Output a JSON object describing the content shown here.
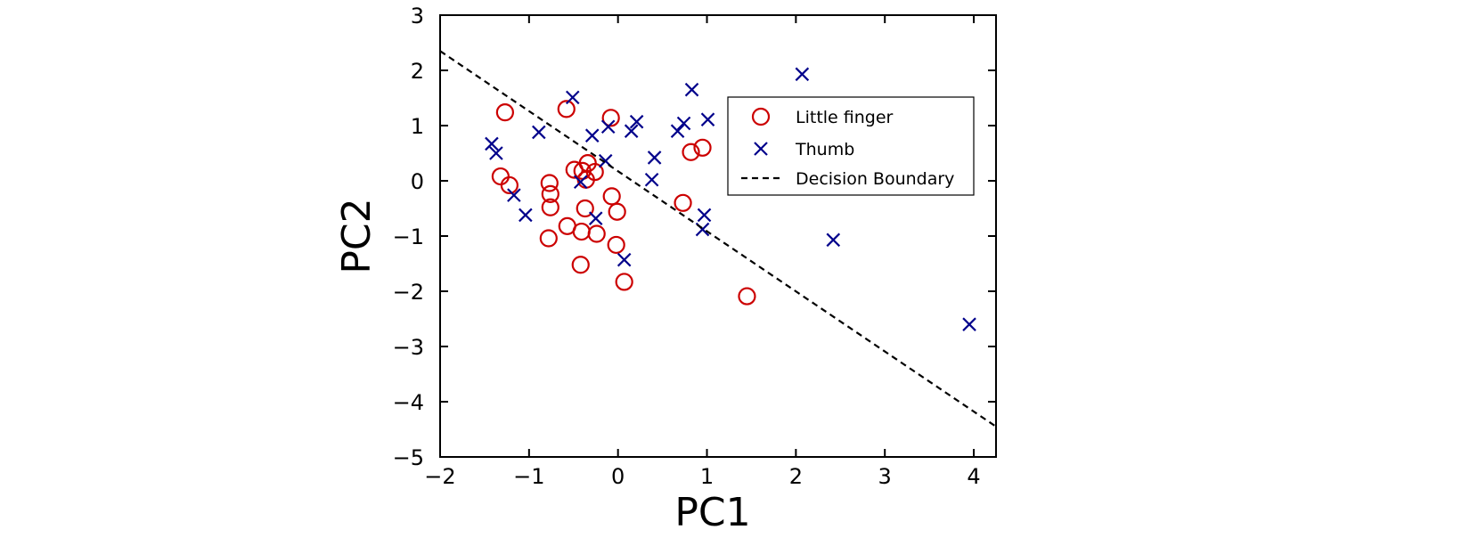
{
  "chart_data": {
    "type": "scatter",
    "xlabel": "PC1",
    "ylabel": "PC2",
    "xlim": [
      -2,
      4.25
    ],
    "ylim": [
      -5,
      3
    ],
    "xticks": [
      -2,
      -1,
      0,
      1,
      2,
      3,
      4
    ],
    "yticks": [
      3,
      2,
      1,
      0,
      -1,
      -2,
      -3,
      -4,
      -5
    ],
    "xtick_labels": [
      "−2",
      "−1",
      "0",
      "1",
      "2",
      "3",
      "4"
    ],
    "ytick_labels": [
      "3",
      "2",
      "1",
      "0",
      "−1",
      "−2",
      "−3",
      "−4",
      "−5"
    ],
    "grid": false,
    "legend_position": "upper-right",
    "series": [
      {
        "name": "Little finger",
        "marker": "circle",
        "color": "#cc0000",
        "points": [
          [
            -1.27,
            1.24
          ],
          [
            -0.58,
            1.3
          ],
          [
            -0.08,
            1.14
          ],
          [
            -1.32,
            0.08
          ],
          [
            -1.22,
            -0.08
          ],
          [
            -0.77,
            -0.04
          ],
          [
            -0.76,
            -0.24
          ],
          [
            -0.76,
            -0.48
          ],
          [
            -0.49,
            0.2
          ],
          [
            -0.4,
            0.18
          ],
          [
            -0.34,
            0.32
          ],
          [
            -0.26,
            0.16
          ],
          [
            -0.36,
            0.02
          ],
          [
            -0.07,
            -0.28
          ],
          [
            -0.37,
            -0.5
          ],
          [
            -0.01,
            -0.56
          ],
          [
            -0.57,
            -0.82
          ],
          [
            -0.41,
            -0.92
          ],
          [
            -0.24,
            -0.96
          ],
          [
            -0.78,
            -1.04
          ],
          [
            -0.02,
            -1.16
          ],
          [
            -0.42,
            -1.52
          ],
          [
            0.07,
            -1.83
          ],
          [
            0.73,
            -0.4
          ],
          [
            0.82,
            0.52
          ],
          [
            0.95,
            0.6
          ],
          [
            1.45,
            -2.09
          ]
        ]
      },
      {
        "name": "Thumb",
        "marker": "x",
        "color": "#00008b",
        "points": [
          [
            -0.51,
            1.51
          ],
          [
            -1.42,
            0.67
          ],
          [
            -1.37,
            0.5
          ],
          [
            -0.89,
            0.88
          ],
          [
            -0.29,
            0.82
          ],
          [
            -0.11,
            0.98
          ],
          [
            0.21,
            1.07
          ],
          [
            0.15,
            0.9
          ],
          [
            -0.14,
            0.36
          ],
          [
            -0.42,
            -0.02
          ],
          [
            -1.17,
            -0.26
          ],
          [
            -1.04,
            -0.62
          ],
          [
            -0.25,
            -0.68
          ],
          [
            0.07,
            -1.43
          ],
          [
            0.38,
            0.02
          ],
          [
            0.41,
            0.42
          ],
          [
            0.67,
            0.9
          ],
          [
            0.74,
            1.04
          ],
          [
            0.83,
            1.65
          ],
          [
            1.01,
            1.11
          ],
          [
            0.97,
            -0.62
          ],
          [
            0.95,
            -0.88
          ],
          [
            2.07,
            1.93
          ],
          [
            2.42,
            -1.07
          ],
          [
            3.95,
            -2.6
          ]
        ]
      }
    ],
    "lines": [
      {
        "name": "Decision Boundary",
        "style": "dashed",
        "color": "#000000",
        "x": [
          -2,
          4.25
        ],
        "y": [
          2.35,
          -4.45
        ]
      }
    ]
  }
}
